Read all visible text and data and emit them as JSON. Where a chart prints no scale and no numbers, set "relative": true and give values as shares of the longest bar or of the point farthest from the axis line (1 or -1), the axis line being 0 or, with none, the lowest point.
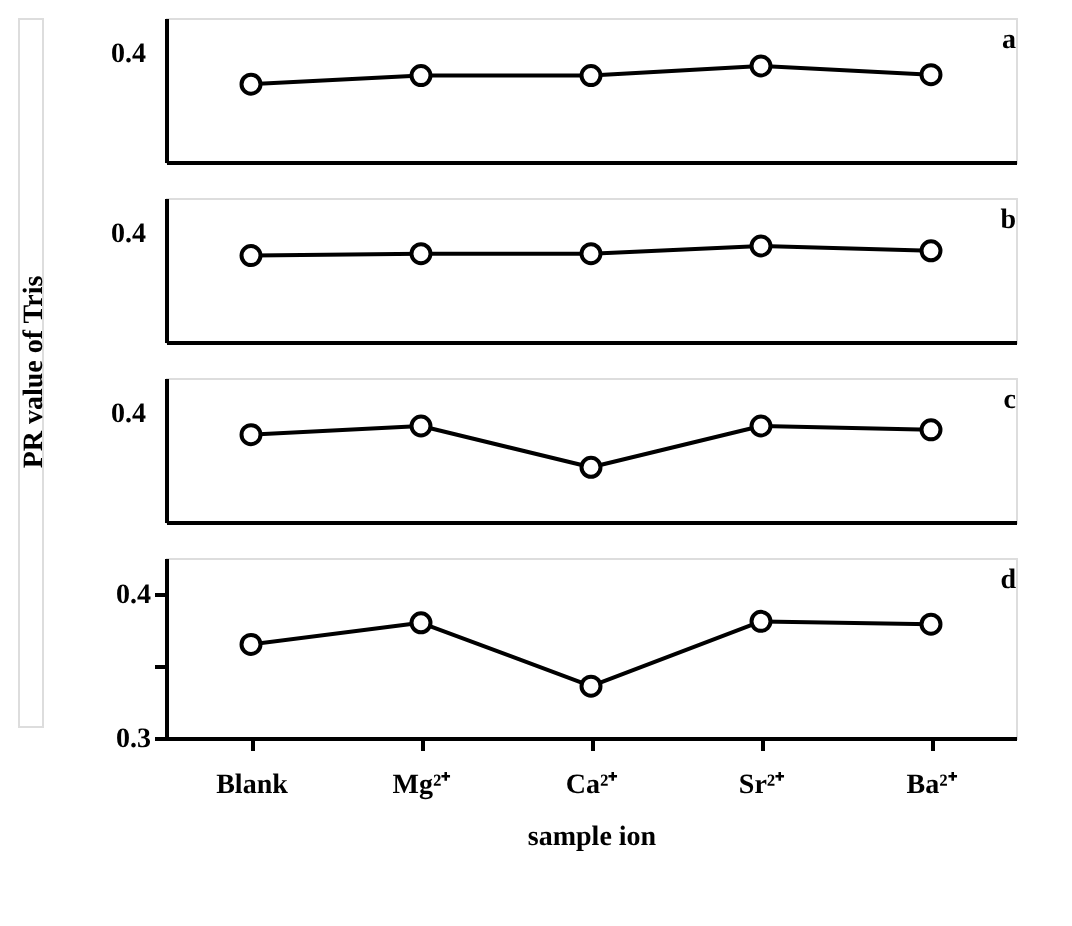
{
  "chart_data": [
    {
      "type": "line",
      "ylabel": "PR value of Tris",
      "categories": [
        null,
        null,
        null,
        null,
        null
      ],
      "series": [
        {
          "color": "#000000",
          "values": [
            0.81,
            0.9,
            0.9,
            1,
            0.91
          ]
        }
      ],
      "relative": true,
      "annotations": [
        "a",
        "0.4"
      ],
      "tick_labels": false,
      "marker": "circle",
      "grid": false
    },
    {
      "type": "line",
      "categories": [
        null,
        null,
        null,
        null,
        null
      ],
      "series": [
        {
          "color": "#000000",
          "values": [
            0.9,
            0.92,
            0.92,
            1,
            0.95
          ]
        }
      ],
      "relative": true,
      "annotations": [
        "b",
        "0.4"
      ],
      "tick_labels": false,
      "marker": "circle",
      "grid": false
    },
    {
      "type": "line",
      "categories": [
        null,
        null,
        null,
        null,
        null
      ],
      "series": [
        {
          "color": "#000000",
          "values": [
            0.91,
            1,
            0.57,
            1,
            0.96
          ]
        }
      ],
      "relative": true,
      "annotations": [
        "c",
        "0.4"
      ],
      "tick_labels": false,
      "marker": "circle",
      "grid": false
    },
    {
      "type": "line",
      "xlabel": "sample ion",
      "categories": [
        "Blank",
        "Mg²⁺",
        "Ca²⁺",
        "Sr²⁺",
        "Ba²⁺"
      ],
      "series": [
        {
          "color": "#000000",
          "values": [
            0.365,
            0.38,
            0.336,
            0.381,
            0.379
          ]
        }
      ],
      "ylim": [
        0.3,
        0.425
      ],
      "yticks": [
        0.3,
        {
          "value": 0.35,
          "label": null
        },
        0.4
      ],
      "annotations": [
        "d"
      ],
      "marker": "circle",
      "grid": false
    }
  ]
}
